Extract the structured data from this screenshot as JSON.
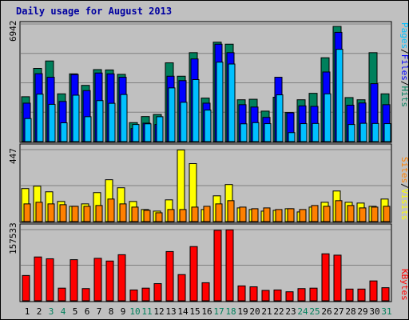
{
  "chart_data": [
    {
      "type": "bar",
      "title": "Daily usage for August 2013",
      "categories": [
        "1",
        "2",
        "3",
        "4",
        "5",
        "6",
        "7",
        "8",
        "9",
        "10",
        "11",
        "12",
        "13",
        "14",
        "15",
        "16",
        "17",
        "18",
        "19",
        "20",
        "21",
        "22",
        "23",
        "24",
        "25",
        "26",
        "27",
        "28",
        "29",
        "30",
        "31"
      ],
      "weekend_days": [
        "3",
        "4",
        "10",
        "11",
        "17",
        "18",
        "24",
        "25",
        "31"
      ],
      "ymax_label": "6942",
      "ylim": [
        0,
        6942
      ],
      "legend": [
        "Pages",
        "Files",
        "Hits"
      ],
      "series": [
        {
          "name": "Hits",
          "color": "#00805c",
          "values": [
            2650,
            4320,
            4760,
            2820,
            4000,
            3320,
            4250,
            4230,
            3970,
            1120,
            1480,
            1600,
            4650,
            3860,
            5250,
            2570,
            5870,
            5750,
            2470,
            2500,
            1800,
            2620,
            1720,
            2470,
            2850,
            4950,
            6800,
            2600,
            2470,
            5250,
            2820
          ]
        },
        {
          "name": "Files",
          "color": "#0000ff",
          "values": [
            2270,
            4010,
            3800,
            2370,
            3960,
            3010,
            4050,
            4000,
            3800,
            770,
            1090,
            1010,
            3860,
            3600,
            4880,
            2270,
            5750,
            5250,
            2180,
            2040,
            1430,
            3800,
            1700,
            2110,
            2080,
            4110,
            6450,
            2150,
            2280,
            3420,
            2180
          ]
        },
        {
          "name": "Pages",
          "color": "#00c0ff",
          "values": [
            1360,
            2800,
            2200,
            1110,
            2740,
            1470,
            2420,
            2260,
            2780,
            1010,
            1050,
            1470,
            3170,
            2320,
            3660,
            1860,
            4690,
            4580,
            1050,
            1120,
            1060,
            2760,
            530,
            1060,
            1070,
            2820,
            5450,
            1010,
            1080,
            1070,
            1060
          ]
        }
      ]
    },
    {
      "type": "bar",
      "ymax_label": "447",
      "ylim": [
        0,
        447
      ],
      "legend": [
        "Sites",
        "Visits"
      ],
      "series": [
        {
          "name": "Visits",
          "color": "#ffff00",
          "values": [
            205,
            220,
            185,
            125,
            95,
            110,
            180,
            260,
            210,
            125,
            75,
            65,
            135,
            445,
            360,
            75,
            160,
            230,
            85,
            75,
            65,
            70,
            80,
            60,
            90,
            120,
            190,
            120,
            115,
            95,
            140
          ]
        },
        {
          "name": "Sites",
          "color": "#ff8000",
          "values": [
            110,
            120,
            110,
            105,
            95,
            95,
            100,
            140,
            110,
            90,
            70,
            55,
            75,
            75,
            90,
            95,
            110,
            130,
            90,
            80,
            85,
            75,
            80,
            75,
            100,
            95,
            130,
            100,
            85,
            90,
            95
          ]
        }
      ]
    },
    {
      "type": "bar",
      "ymax_label": "157533",
      "ylim": [
        0,
        157533
      ],
      "legend": [
        "KBytes"
      ],
      "series": [
        {
          "name": "KBytes",
          "color": "#ff0000",
          "values": [
            56000,
            97000,
            93000,
            28000,
            91000,
            27000,
            94000,
            88000,
            102000,
            24000,
            28000,
            38000,
            109000,
            58000,
            120000,
            40000,
            156000,
            157000,
            33000,
            31000,
            23000,
            24000,
            20000,
            27000,
            28000,
            104000,
            101000,
            26000,
            26000,
            44000,
            29000
          ]
        }
      ]
    }
  ]
}
